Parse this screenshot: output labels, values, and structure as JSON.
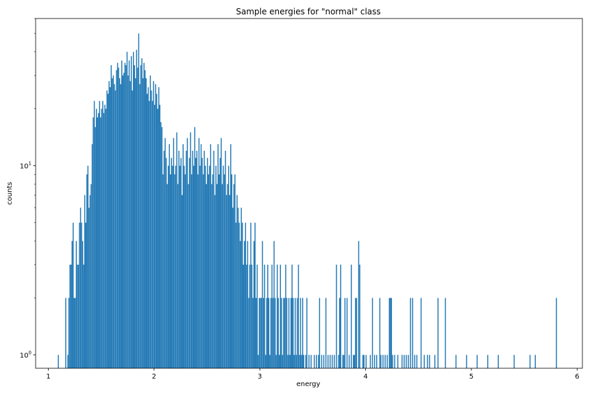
{
  "chart_data": {
    "type": "histogram",
    "title": "Sample energies for \"normal\" class",
    "xlabel": "energy",
    "ylabel": "counts",
    "xlim": [
      0.88,
      6.05
    ],
    "ylim": [
      0.85,
      60
    ],
    "yscale": "log",
    "x_ticks": [
      1,
      2,
      3,
      4,
      5,
      6
    ],
    "x_tick_labels": [
      "1",
      "2",
      "3",
      "4",
      "5",
      "6"
    ],
    "y_ticks": [
      {
        "value": 1,
        "base": "10",
        "exp": "0"
      },
      {
        "value": 10,
        "base": "10",
        "exp": "1"
      }
    ],
    "color": "#1f77b4",
    "bin_width": 0.0094,
    "bins": [
      [
        1.09,
        1
      ],
      [
        1.16,
        2
      ],
      [
        1.18,
        1
      ],
      [
        1.19,
        2
      ],
      [
        1.2,
        3
      ],
      [
        1.21,
        3
      ],
      [
        1.22,
        4
      ],
      [
        1.23,
        5
      ],
      [
        1.24,
        2
      ],
      [
        1.25,
        2
      ],
      [
        1.26,
        4
      ],
      [
        1.27,
        3
      ],
      [
        1.28,
        3
      ],
      [
        1.29,
        5
      ],
      [
        1.3,
        6
      ],
      [
        1.31,
        5
      ],
      [
        1.32,
        4
      ],
      [
        1.33,
        3
      ],
      [
        1.34,
        7
      ],
      [
        1.35,
        5
      ],
      [
        1.36,
        9
      ],
      [
        1.37,
        10
      ],
      [
        1.38,
        6
      ],
      [
        1.39,
        7
      ],
      [
        1.4,
        8
      ],
      [
        1.41,
        13
      ],
      [
        1.42,
        18
      ],
      [
        1.43,
        22
      ],
      [
        1.44,
        16
      ],
      [
        1.45,
        20
      ],
      [
        1.46,
        18
      ],
      [
        1.47,
        19
      ],
      [
        1.48,
        22
      ],
      [
        1.49,
        18
      ],
      [
        1.5,
        20
      ],
      [
        1.51,
        22
      ],
      [
        1.52,
        19
      ],
      [
        1.53,
        21
      ],
      [
        1.54,
        20
      ],
      [
        1.55,
        25
      ],
      [
        1.56,
        24
      ],
      [
        1.57,
        28
      ],
      [
        1.58,
        26
      ],
      [
        1.59,
        34
      ],
      [
        1.6,
        29
      ],
      [
        1.61,
        30
      ],
      [
        1.62,
        27
      ],
      [
        1.63,
        25
      ],
      [
        1.64,
        32
      ],
      [
        1.65,
        35
      ],
      [
        1.66,
        33
      ],
      [
        1.67,
        29
      ],
      [
        1.68,
        27
      ],
      [
        1.69,
        36
      ],
      [
        1.7,
        30
      ],
      [
        1.71,
        31
      ],
      [
        1.72,
        35
      ],
      [
        1.73,
        34
      ],
      [
        1.74,
        40
      ],
      [
        1.75,
        30
      ],
      [
        1.76,
        36
      ],
      [
        1.77,
        28
      ],
      [
        1.78,
        38
      ],
      [
        1.79,
        25
      ],
      [
        1.8,
        40
      ],
      [
        1.81,
        34
      ],
      [
        1.82,
        29
      ],
      [
        1.83,
        41
      ],
      [
        1.84,
        33
      ],
      [
        1.85,
        50
      ],
      [
        1.86,
        27
      ],
      [
        1.87,
        34
      ],
      [
        1.88,
        37
      ],
      [
        1.89,
        29
      ],
      [
        1.9,
        35
      ],
      [
        1.91,
        32
      ],
      [
        1.92,
        29
      ],
      [
        1.93,
        24
      ],
      [
        1.94,
        26
      ],
      [
        1.95,
        22
      ],
      [
        1.96,
        30
      ],
      [
        1.97,
        25
      ],
      [
        1.98,
        22
      ],
      [
        1.99,
        28
      ],
      [
        2.0,
        21
      ],
      [
        2.01,
        27
      ],
      [
        2.02,
        24
      ],
      [
        2.03,
        20
      ],
      [
        2.04,
        26
      ],
      [
        2.05,
        21
      ],
      [
        2.06,
        17
      ],
      [
        2.07,
        16
      ],
      [
        2.08,
        9
      ],
      [
        2.09,
        12
      ],
      [
        2.1,
        14
      ],
      [
        2.11,
        11
      ],
      [
        2.12,
        8
      ],
      [
        2.13,
        10
      ],
      [
        2.14,
        13
      ],
      [
        2.15,
        9
      ],
      [
        2.16,
        11
      ],
      [
        2.17,
        10
      ],
      [
        2.18,
        14
      ],
      [
        2.19,
        9
      ],
      [
        2.2,
        10
      ],
      [
        2.21,
        15
      ],
      [
        2.22,
        8
      ],
      [
        2.23,
        12
      ],
      [
        2.24,
        10
      ],
      [
        2.25,
        11
      ],
      [
        2.26,
        7
      ],
      [
        2.27,
        13
      ],
      [
        2.28,
        10
      ],
      [
        2.29,
        9
      ],
      [
        2.3,
        12
      ],
      [
        2.31,
        14
      ],
      [
        2.32,
        8
      ],
      [
        2.33,
        11
      ],
      [
        2.34,
        15
      ],
      [
        2.35,
        9
      ],
      [
        2.36,
        12
      ],
      [
        2.37,
        10
      ],
      [
        2.38,
        16
      ],
      [
        2.39,
        11
      ],
      [
        2.4,
        12
      ],
      [
        2.41,
        9
      ],
      [
        2.42,
        14
      ],
      [
        2.43,
        10
      ],
      [
        2.44,
        13
      ],
      [
        2.45,
        11
      ],
      [
        2.46,
        9
      ],
      [
        2.47,
        12
      ],
      [
        2.48,
        10
      ],
      [
        2.49,
        8
      ],
      [
        2.5,
        11
      ],
      [
        2.51,
        9
      ],
      [
        2.52,
        10
      ],
      [
        2.53,
        13
      ],
      [
        2.54,
        8
      ],
      [
        2.55,
        9
      ],
      [
        2.56,
        12
      ],
      [
        2.57,
        7
      ],
      [
        2.58,
        10
      ],
      [
        2.59,
        8
      ],
      [
        2.6,
        13
      ],
      [
        2.61,
        9
      ],
      [
        2.62,
        11
      ],
      [
        2.63,
        14
      ],
      [
        2.64,
        8
      ],
      [
        2.65,
        10
      ],
      [
        2.66,
        9
      ],
      [
        2.67,
        12
      ],
      [
        2.68,
        7
      ],
      [
        2.69,
        8
      ],
      [
        2.7,
        10
      ],
      [
        2.71,
        7
      ],
      [
        2.72,
        13
      ],
      [
        2.73,
        9
      ],
      [
        2.74,
        6
      ],
      [
        2.75,
        8
      ],
      [
        2.76,
        9
      ],
      [
        2.77,
        5
      ],
      [
        2.78,
        7
      ],
      [
        2.79,
        6
      ],
      [
        2.8,
        5
      ],
      [
        2.81,
        4
      ],
      [
        2.82,
        6
      ],
      [
        2.83,
        5
      ],
      [
        2.84,
        3
      ],
      [
        2.85,
        4
      ],
      [
        2.86,
        5
      ],
      [
        2.87,
        3
      ],
      [
        2.88,
        4
      ],
      [
        2.89,
        2
      ],
      [
        2.9,
        3
      ],
      [
        2.91,
        5
      ],
      [
        2.92,
        3
      ],
      [
        2.93,
        2
      ],
      [
        2.94,
        4
      ],
      [
        2.95,
        5
      ],
      [
        2.96,
        2
      ],
      [
        2.97,
        3
      ],
      [
        2.98,
        1
      ],
      [
        2.99,
        2
      ],
      [
        3.0,
        2
      ],
      [
        3.01,
        2
      ],
      [
        3.02,
        4
      ],
      [
        3.03,
        2
      ],
      [
        3.04,
        3
      ],
      [
        3.05,
        1
      ],
      [
        3.06,
        2
      ],
      [
        3.07,
        3
      ],
      [
        3.08,
        2
      ],
      [
        3.09,
        1
      ],
      [
        3.1,
        2
      ],
      [
        3.11,
        3
      ],
      [
        3.12,
        2
      ],
      [
        3.13,
        4
      ],
      [
        3.14,
        2
      ],
      [
        3.15,
        1
      ],
      [
        3.16,
        3
      ],
      [
        3.17,
        2
      ],
      [
        3.18,
        1
      ],
      [
        3.19,
        3
      ],
      [
        3.2,
        2
      ],
      [
        3.21,
        1
      ],
      [
        3.22,
        2
      ],
      [
        3.23,
        2
      ],
      [
        3.24,
        3
      ],
      [
        3.25,
        2
      ],
      [
        3.26,
        1
      ],
      [
        3.27,
        2
      ],
      [
        3.28,
        1
      ],
      [
        3.29,
        2
      ],
      [
        3.3,
        3
      ],
      [
        3.31,
        2
      ],
      [
        3.32,
        1
      ],
      [
        3.33,
        2
      ],
      [
        3.34,
        1
      ],
      [
        3.35,
        2
      ],
      [
        3.36,
        3
      ],
      [
        3.37,
        1
      ],
      [
        3.38,
        2
      ],
      [
        3.39,
        1
      ],
      [
        3.4,
        2
      ],
      [
        3.41,
        1
      ],
      [
        3.43,
        1
      ],
      [
        3.44,
        2
      ],
      [
        3.46,
        1
      ],
      [
        3.48,
        1
      ],
      [
        3.51,
        1
      ],
      [
        3.53,
        1
      ],
      [
        3.55,
        1
      ],
      [
        3.56,
        2
      ],
      [
        3.58,
        1
      ],
      [
        3.6,
        1
      ],
      [
        3.62,
        2
      ],
      [
        3.64,
        1
      ],
      [
        3.66,
        1
      ],
      [
        3.68,
        1
      ],
      [
        3.7,
        1
      ],
      [
        3.72,
        3
      ],
      [
        3.74,
        1
      ],
      [
        3.75,
        2
      ],
      [
        3.76,
        3
      ],
      [
        3.78,
        1
      ],
      [
        3.79,
        1
      ],
      [
        3.8,
        2
      ],
      [
        3.82,
        2
      ],
      [
        3.84,
        1
      ],
      [
        3.86,
        3
      ],
      [
        3.88,
        1
      ],
      [
        3.89,
        1
      ],
      [
        3.9,
        2
      ],
      [
        3.91,
        2
      ],
      [
        3.93,
        4
      ],
      [
        3.94,
        3
      ],
      [
        3.97,
        1
      ],
      [
        3.98,
        1
      ],
      [
        4.0,
        1
      ],
      [
        4.04,
        1
      ],
      [
        4.06,
        2
      ],
      [
        4.08,
        1
      ],
      [
        4.1,
        1
      ],
      [
        4.13,
        2
      ],
      [
        4.14,
        1
      ],
      [
        4.16,
        1
      ],
      [
        4.18,
        1
      ],
      [
        4.2,
        1
      ],
      [
        4.22,
        2
      ],
      [
        4.23,
        2
      ],
      [
        4.24,
        2
      ],
      [
        4.25,
        1
      ],
      [
        4.27,
        1
      ],
      [
        4.3,
        1
      ],
      [
        4.34,
        1
      ],
      [
        4.36,
        1
      ],
      [
        4.38,
        1
      ],
      [
        4.4,
        1
      ],
      [
        4.42,
        2
      ],
      [
        4.44,
        2
      ],
      [
        4.46,
        1
      ],
      [
        4.48,
        1
      ],
      [
        4.52,
        2
      ],
      [
        4.55,
        1
      ],
      [
        4.58,
        1
      ],
      [
        4.6,
        1
      ],
      [
        4.65,
        1
      ],
      [
        4.68,
        2
      ],
      [
        4.75,
        2
      ],
      [
        4.85,
        1
      ],
      [
        4.95,
        1
      ],
      [
        5.05,
        1
      ],
      [
        5.15,
        1
      ],
      [
        5.25,
        1
      ],
      [
        5.4,
        1
      ],
      [
        5.55,
        1
      ],
      [
        5.6,
        1
      ],
      [
        5.8,
        2
      ]
    ]
  }
}
